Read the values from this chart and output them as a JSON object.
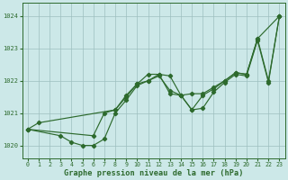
{
  "x": [
    0,
    1,
    2,
    3,
    4,
    5,
    6,
    7,
    8,
    9,
    10,
    11,
    12,
    13,
    14,
    15,
    16,
    17,
    18,
    19,
    20,
    21,
    22,
    23
  ],
  "line1": [
    1020.5,
    1020.7,
    null,
    null,
    null,
    null,
    null,
    null,
    1021.1,
    1021.55,
    1021.9,
    1022.2,
    1022.2,
    1021.6,
    1021.55,
    1021.6,
    1021.6,
    1021.8,
    1022.0,
    1022.25,
    1022.2,
    1023.3,
    null,
    1024.0
  ],
  "line2": [
    1020.5,
    null,
    null,
    1020.3,
    1020.1,
    1020.0,
    1020.0,
    1020.2,
    1021.0,
    1021.4,
    1021.85,
    1022.0,
    1022.15,
    1021.7,
    1021.55,
    1021.1,
    1021.15,
    1021.65,
    1021.95,
    1022.2,
    1022.15,
    1023.25,
    1021.95,
    1024.0
  ],
  "line3": [
    1020.5,
    null,
    null,
    null,
    null,
    null,
    1020.3,
    1021.0,
    1021.1,
    1021.5,
    1021.9,
    1022.0,
    1022.2,
    1022.15,
    1021.55,
    1021.1,
    1021.55,
    1021.75,
    1022.0,
    1022.25,
    1022.2,
    1023.3,
    1022.0,
    1024.0
  ],
  "line_color": "#2d6a2d",
  "bg_color": "#cce8e8",
  "grid_color": "#9dbfbf",
  "ylim": [
    1019.6,
    1024.4
  ],
  "xlim": [
    -0.5,
    23.5
  ],
  "xlabel": "Graphe pression niveau de la mer (hPa)",
  "yticks": [
    1020,
    1021,
    1022,
    1023,
    1024
  ],
  "xticks": [
    0,
    1,
    2,
    3,
    4,
    5,
    6,
    7,
    8,
    9,
    10,
    11,
    12,
    13,
    14,
    15,
    16,
    17,
    18,
    19,
    20,
    21,
    22,
    23
  ]
}
